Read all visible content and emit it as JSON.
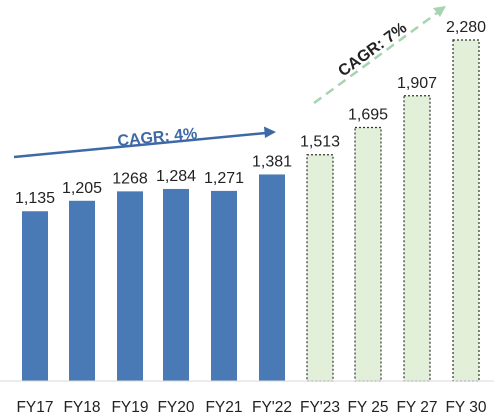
{
  "chart_data": {
    "type": "bar",
    "categories": [
      "FY17",
      "FY18",
      "FY19",
      "FY20",
      "FY21",
      "FY'22",
      "FY'23",
      "FY 25",
      "FY 27",
      "FY 30"
    ],
    "series": [
      {
        "values": [
          1135,
          1205,
          1268,
          1284,
          1271,
          1381,
          null,
          null,
          null,
          null
        ]
      },
      {
        "values": [
          null,
          null,
          null,
          null,
          null,
          null,
          1513,
          1695,
          1907,
          2280
        ]
      }
    ],
    "data_labels": [
      "1,135",
      "1,205",
      "1268",
      "1,284",
      "1,271",
      "1,381",
      "1,513",
      "1,695",
      "1,907",
      "2,280"
    ],
    "annotations": [
      {
        "text": "CAGR: 4%"
      },
      {
        "text": "CAGR: 7%"
      }
    ],
    "ylim": [
      0,
      2280
    ],
    "grid": false,
    "legend": "none",
    "colors": {
      "actual_fill": "#4a7ab5",
      "projected_fill": "#e2f0d9",
      "projected_border": "#333333",
      "actual_arrow": "#3d6aa6",
      "projected_arrow": "#a6d3b0",
      "text": "#222222"
    }
  }
}
